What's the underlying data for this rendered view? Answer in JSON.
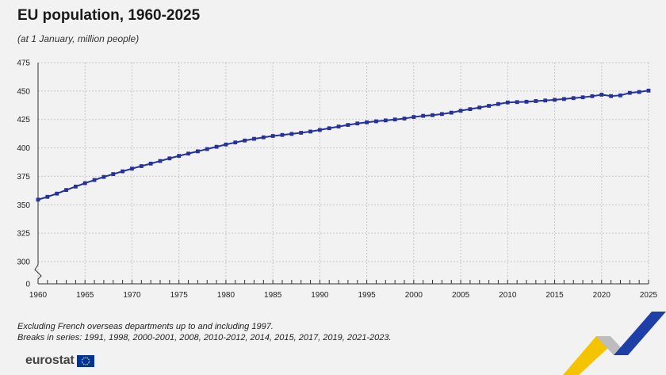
{
  "title": "EU population, 1960-2025",
  "subtitle": "(at 1 January, million people)",
  "notes": {
    "line1": "Excluding French overseas departments up to and including 1997.",
    "line2": "Breaks in series: 1991, 1998, 2000-2001, 2008, 2010-2012, 2014, 2015, 2017, 2019, 2021-2023."
  },
  "logo": {
    "text": "eurostat",
    "flag_color": "#003399",
    "star_color": "#ffcc00"
  },
  "colors": {
    "series": "#26329a",
    "grid": "#c8c8c8",
    "background": "#f2f2f2"
  },
  "chart_data": {
    "type": "line",
    "title": "EU population, 1960-2025",
    "subtitle": "(at 1 January, million people)",
    "xlabel": "",
    "ylabel": "",
    "xlim": [
      1960,
      2025
    ],
    "ylim": [
      300,
      475
    ],
    "y_axis_break": true,
    "y_ticks": [
      0,
      300,
      325,
      350,
      375,
      400,
      425,
      450,
      475
    ],
    "x_ticks": [
      1960,
      1965,
      1970,
      1975,
      1980,
      1985,
      1990,
      1995,
      2000,
      2005,
      2010,
      2015,
      2020,
      2025
    ],
    "grid": true,
    "x": [
      1960,
      1961,
      1962,
      1963,
      1964,
      1965,
      1966,
      1967,
      1968,
      1969,
      1970,
      1971,
      1972,
      1973,
      1974,
      1975,
      1976,
      1977,
      1978,
      1979,
      1980,
      1981,
      1982,
      1983,
      1984,
      1985,
      1986,
      1987,
      1988,
      1989,
      1990,
      1991,
      1992,
      1993,
      1994,
      1995,
      1996,
      1997,
      1998,
      1999,
      2000,
      2001,
      2002,
      2003,
      2004,
      2005,
      2006,
      2007,
      2008,
      2009,
      2010,
      2011,
      2012,
      2013,
      2014,
      2015,
      2016,
      2017,
      2018,
      2019,
      2020,
      2021,
      2022,
      2023,
      2024,
      2025
    ],
    "series": [
      {
        "values": [
          354.5,
          357.0,
          359.8,
          363.0,
          366.0,
          369.0,
          371.8,
          374.5,
          377.0,
          379.4,
          381.8,
          384.0,
          386.2,
          388.5,
          390.8,
          393.0,
          395.0,
          397.0,
          399.0,
          401.0,
          403.0,
          404.8,
          406.5,
          408.0,
          409.3,
          410.5,
          411.4,
          412.3,
          413.3,
          414.4,
          415.8,
          417.3,
          418.8,
          420.2,
          421.5,
          422.5,
          423.4,
          424.2,
          425.0,
          425.8,
          427.2,
          428.2,
          428.8,
          429.8,
          431.0,
          432.7,
          434.1,
          435.5,
          437.0,
          438.6,
          440.0,
          440.3,
          440.6,
          441.2,
          441.7,
          442.3,
          443.0,
          443.8,
          444.5,
          445.5,
          446.8,
          445.6,
          446.2,
          448.4,
          449.2,
          450.4
        ]
      }
    ]
  }
}
